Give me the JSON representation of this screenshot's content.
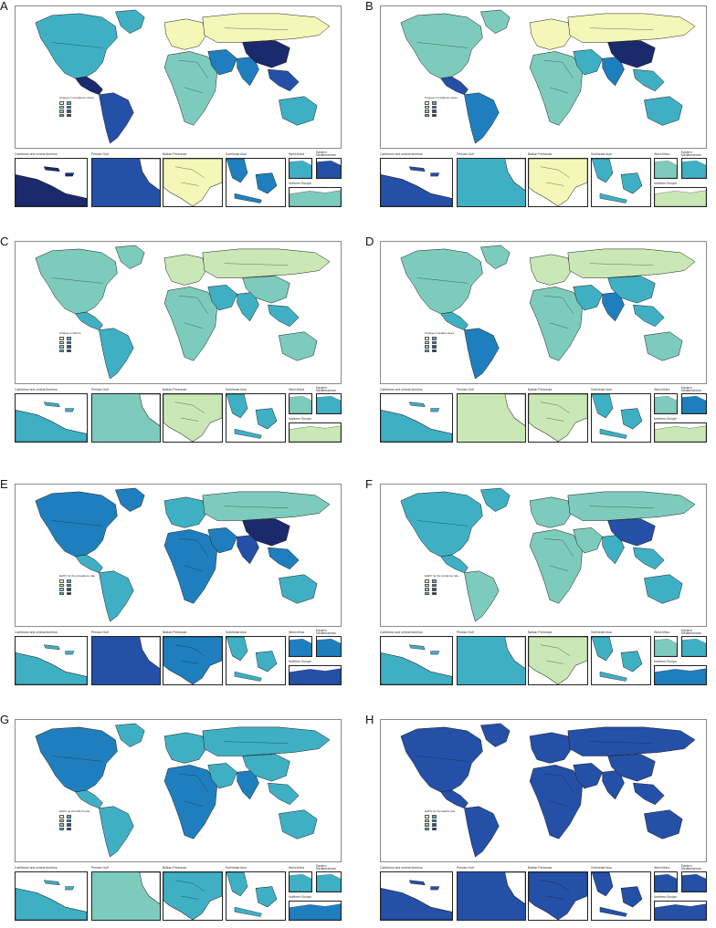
{
  "inset_labels": {
    "caribbean": "Caribbean and central America",
    "persian_gulf": "Persian Gulf",
    "balkan": "Balkan Peninsula",
    "southeast_asia": "Sothheast Asia",
    "west_africa": "West Africa",
    "eastern_med": "Eastern Mediterranean",
    "northern_europe": "Northern Europe"
  },
  "colors": {
    "c1": "#f4f7b8",
    "c2": "#c9e8b5",
    "c3": "#7dcbbc",
    "c4": "#3fb0c4",
    "c5": "#1f7fbe",
    "c6": "#2550a8",
    "c7": "#1a2a6c"
  },
  "panels": [
    {
      "letter": "A",
      "legend_title": "Change in prevalence cases",
      "fills": {
        "na": "c4",
        "greenland": "c4",
        "ca": "c7",
        "sa": "c6",
        "eu": "c1",
        "ru": "c1",
        "af": "c3",
        "me": "c5",
        "in": "c5",
        "cn": "c7",
        "sea": "c6",
        "au": "c4"
      },
      "insets": {
        "caribbean": "c7",
        "persian_gulf": "c6",
        "balkan": "c1",
        "southeast_asia": "c5",
        "west_africa": "c4",
        "eastern_med": "c6",
        "northern_europe": "c3"
      }
    },
    {
      "letter": "B",
      "legend_title": "Change in incidence cases",
      "fills": {
        "na": "c3",
        "greenland": "c3",
        "ca": "c6",
        "sa": "c5",
        "eu": "c1",
        "ru": "c1",
        "af": "c3",
        "me": "c4",
        "in": "c5",
        "cn": "c7",
        "sea": "c4",
        "au": "c4"
      },
      "insets": {
        "caribbean": "c6",
        "persian_gulf": "c4",
        "balkan": "c1",
        "southeast_asia": "c4",
        "west_africa": "c3",
        "eastern_med": "c4",
        "northern_europe": "c2"
      }
    },
    {
      "letter": "C",
      "legend_title": "Change in DALYs",
      "fills": {
        "na": "c3",
        "greenland": "c3",
        "ca": "c4",
        "sa": "c4",
        "eu": "c2",
        "ru": "c2",
        "af": "c3",
        "me": "c4",
        "in": "c4",
        "cn": "c3",
        "sea": "c4",
        "au": "c3"
      },
      "insets": {
        "caribbean": "c4",
        "persian_gulf": "c3",
        "balkan": "c2",
        "southeast_asia": "c4",
        "west_africa": "c3",
        "eastern_med": "c4",
        "northern_europe": "c2"
      }
    },
    {
      "letter": "D",
      "legend_title": "Change in deaths cases",
      "fills": {
        "na": "c3",
        "greenland": "c3",
        "ca": "c4",
        "sa": "c5",
        "eu": "c2",
        "ru": "c2",
        "af": "c3",
        "me": "c4",
        "in": "c5",
        "cn": "c4",
        "sea": "c4",
        "au": "c3"
      },
      "insets": {
        "caribbean": "c4",
        "persian_gulf": "c2",
        "balkan": "c2",
        "southeast_asia": "c4",
        "west_africa": "c3",
        "eastern_med": "c5",
        "northern_europe": "c2"
      }
    },
    {
      "letter": "E",
      "legend_title": "EAPC for the prevalence rate",
      "fills": {
        "na": "c5",
        "greenland": "c5",
        "ca": "c4",
        "sa": "c4",
        "eu": "c4",
        "ru": "c3",
        "af": "c5",
        "me": "c5",
        "in": "c6",
        "cn": "c7",
        "sea": "c5",
        "au": "c4"
      },
      "insets": {
        "caribbean": "c4",
        "persian_gulf": "c6",
        "balkan": "c5",
        "southeast_asia": "c4",
        "west_africa": "c5",
        "eastern_med": "c5",
        "northern_europe": "c6"
      }
    },
    {
      "letter": "F",
      "legend_title": "EAPC for the incidence rate",
      "fills": {
        "na": "c4",
        "greenland": "c4",
        "ca": "c4",
        "sa": "c3",
        "eu": "c3",
        "ru": "c3",
        "af": "c3",
        "me": "c3",
        "in": "c4",
        "cn": "c6",
        "sea": "c4",
        "au": "c4"
      },
      "insets": {
        "caribbean": "c4",
        "persian_gulf": "c4",
        "balkan": "c2",
        "southeast_asia": "c4",
        "west_africa": "c3",
        "eastern_med": "c4",
        "northern_europe": "c5"
      }
    },
    {
      "letter": "G",
      "legend_title": "EAPC for the DALYs rate",
      "fills": {
        "na": "c5",
        "greenland": "c4",
        "ca": "c4",
        "sa": "c4",
        "eu": "c4",
        "ru": "c4",
        "af": "c5",
        "me": "c4",
        "in": "c5",
        "cn": "c4",
        "sea": "c4",
        "au": "c4"
      },
      "insets": {
        "caribbean": "c4",
        "persian_gulf": "c3",
        "balkan": "c4",
        "southeast_asia": "c4",
        "west_africa": "c4",
        "eastern_med": "c4",
        "northern_europe": "c5"
      }
    },
    {
      "letter": "H",
      "legend_title": "EAPC for the deaths rate",
      "fills": {
        "na": "c6",
        "greenland": "c6",
        "ca": "c6",
        "sa": "c6",
        "eu": "c6",
        "ru": "c6",
        "af": "c6",
        "me": "c6",
        "in": "c6",
        "cn": "c6",
        "sea": "c6",
        "au": "c6"
      },
      "insets": {
        "caribbean": "c6",
        "persian_gulf": "c6",
        "balkan": "c6",
        "southeast_asia": "c6",
        "west_africa": "c6",
        "eastern_med": "c6",
        "northern_europe": "c6"
      }
    }
  ]
}
